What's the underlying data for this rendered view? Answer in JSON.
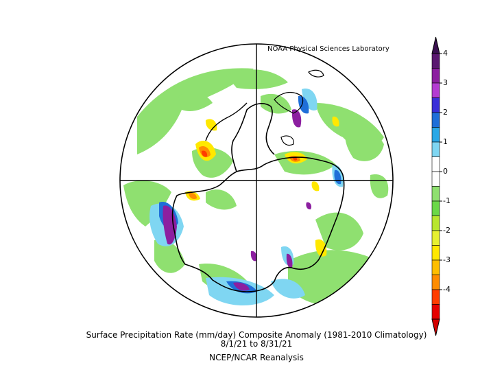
{
  "credit": "NOAA Physical Sciences Laboratory",
  "title": {
    "line1": "Surface Precipitation Rate (mm/day) Composite Anomaly (1981-2010 Climatology)",
    "line2": "8/1/21  to 8/31/21",
    "line3": "NCEP/NCAR Reanalysis"
  },
  "colorbar": {
    "labels": [
      "4",
      "3",
      "2",
      "1",
      "0",
      "-1",
      "-2",
      "-3",
      "-4"
    ],
    "colors": [
      "#5a1870",
      "#8c1fa0",
      "#b43cd2",
      "#3a2fd8",
      "#1f6fd8",
      "#2aa8e6",
      "#7fd6f2",
      "#ffffff",
      "#ffffff",
      "#8fe070",
      "#6ad848",
      "#b8e630",
      "#e6f030",
      "#ffe800",
      "#ffbe00",
      "#ff8c00",
      "#ff3c00",
      "#e60000"
    ],
    "top_arrow_color": "#3a1050",
    "bottom_arrow_color": "#d40000"
  },
  "colors": {
    "coast": "#000000",
    "light_green": "#8fe070",
    "green": "#6ad848",
    "yellow_green": "#b8e630",
    "yellow": "#ffe800",
    "orange": "#ff8c00",
    "red": "#ff3c00",
    "light_blue": "#7fd6f2",
    "blue": "#1f6fd8",
    "purple": "#8c1fa0",
    "dark_purple": "#5a1870"
  }
}
